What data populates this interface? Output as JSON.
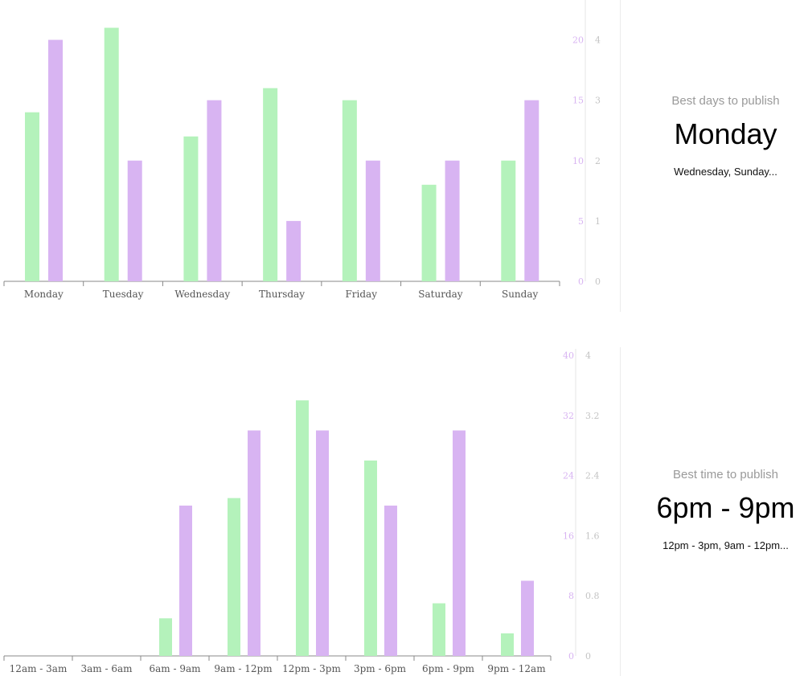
{
  "colors": {
    "series_a": "#b4f2bb",
    "series_b": "#d8b4f2",
    "axis": "#888888",
    "right_axis_text": "#c4c4c4"
  },
  "days_summary": {
    "caption": "Best days to publish",
    "best": "Monday",
    "others": "Wednesday, Sunday..."
  },
  "hours_summary": {
    "caption": "Best time to publish",
    "best": "6pm - 9pm",
    "others": "12pm - 3pm, 9am - 12pm..."
  },
  "chart_data": [
    {
      "type": "bar",
      "categories": [
        "Monday",
        "Tuesday",
        "Wednesday",
        "Thursday",
        "Friday",
        "Saturday",
        "Sunday"
      ],
      "series": [
        {
          "values": [
            14,
            21,
            12,
            16,
            15,
            8,
            10
          ],
          "color": "#b4f2bb",
          "axis": "left"
        },
        {
          "values": [
            20,
            10,
            15,
            5,
            10,
            10,
            15
          ],
          "color": "#d8b4f2",
          "axis": "left"
        }
      ],
      "left_axis": {
        "ticks": [
          "0",
          "5",
          "10",
          "15",
          "20"
        ],
        "ylim": [
          0,
          23
        ]
      },
      "right_axis": {
        "ticks": [
          "0",
          "1",
          "2",
          "3",
          "4"
        ],
        "ylim": [
          0,
          4.6
        ]
      },
      "grid": false
    },
    {
      "type": "bar",
      "categories": [
        "12am - 3am",
        "3am - 6am",
        "6am - 9am",
        "9am - 12pm",
        "12pm - 3pm",
        "3pm - 6pm",
        "6pm - 9pm",
        "9pm - 12am"
      ],
      "series": [
        {
          "values": [
            0,
            0,
            5,
            21,
            34,
            26,
            7,
            3
          ],
          "color": "#b4f2bb",
          "axis": "left"
        },
        {
          "values": [
            0,
            0,
            20,
            30,
            30,
            20,
            30,
            10
          ],
          "color": "#d8b4f2",
          "axis": "left"
        }
      ],
      "left_axis": {
        "ticks": [
          "0",
          "8",
          "16",
          "24",
          "32",
          "40"
        ],
        "ylim": [
          0,
          40
        ]
      },
      "right_axis": {
        "ticks": [
          "0",
          "0.8",
          "1.6",
          "2.4",
          "3.2",
          "4"
        ],
        "ylim": [
          0,
          4
        ]
      },
      "grid": false
    }
  ]
}
